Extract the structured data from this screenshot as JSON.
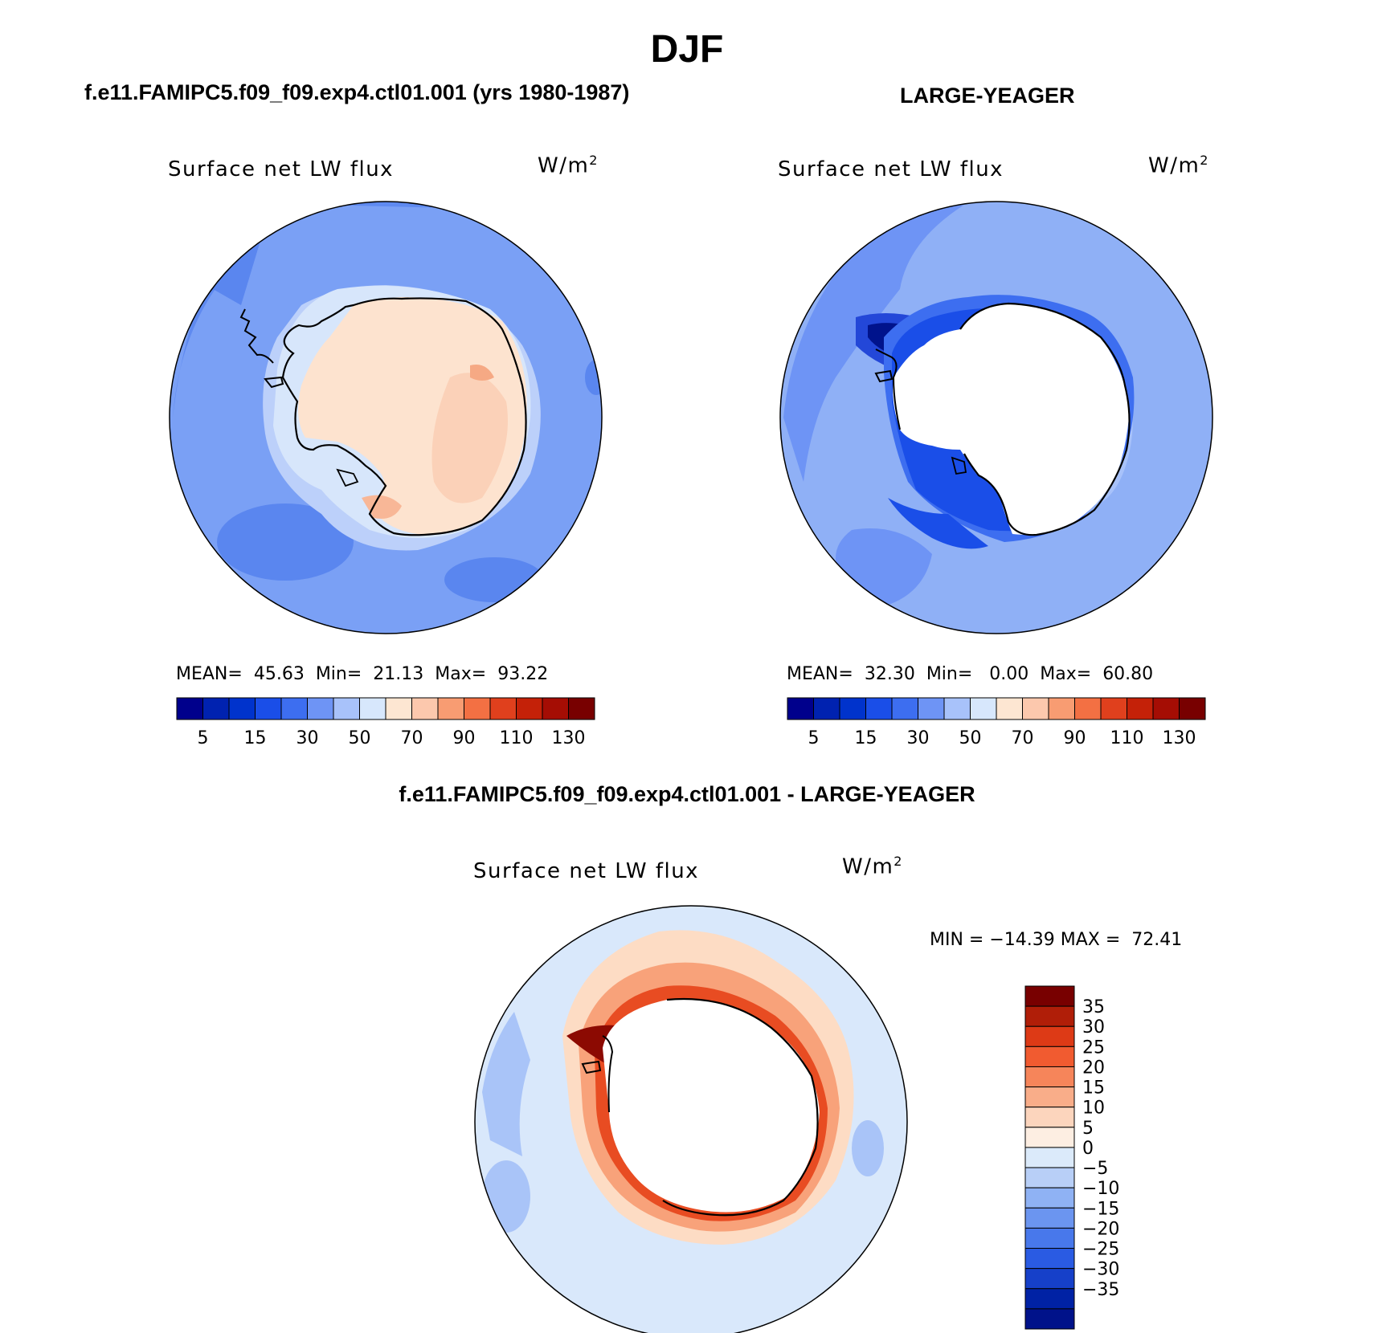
{
  "figure": {
    "title": "DJF"
  },
  "panels": {
    "model": {
      "case_title": "f.e11.FAMIPC5.f09_f09.exp4.ctl01.001 (yrs 1980-1987)",
      "variable": "Surface net LW flux",
      "units_text": "W/m",
      "units_sup": "2",
      "stats": {
        "mean_label": "MEAN=",
        "mean": "45.63",
        "min_label": "Min=",
        "min": "21.13",
        "max_label": "Max=",
        "max": "93.22"
      }
    },
    "obs": {
      "case_title": "LARGE-YEAGER",
      "variable": "Surface net LW flux",
      "units_text": "W/m",
      "units_sup": "2",
      "stats": {
        "mean_label": "MEAN=",
        "mean": "32.30",
        "min_label": "Min=",
        "min": "0.00",
        "max_label": "Max=",
        "max": "60.80"
      }
    },
    "diff": {
      "case_title": "f.e11.FAMIPC5.f09_f09.exp4.ctl01.001 - LARGE-YEAGER",
      "variable": "Surface net LW flux",
      "units_text": "W/m",
      "units_sup": "2",
      "min_max_text": "MIN = −14.39 MAX =  72.41"
    }
  },
  "colorbars": {
    "absolute": {
      "orientation": "horizontal",
      "colors": [
        "#00008c",
        "#0022b0",
        "#0033cc",
        "#1a4ee8",
        "#3d6ef0",
        "#6e94f5",
        "#a8c2fa",
        "#d7e7fc",
        "#fde6d2",
        "#fcc8ad",
        "#f89c72",
        "#f37043",
        "#e0401d",
        "#c42108",
        "#a50d04",
        "#780000"
      ],
      "tick_labels": [
        "5",
        "15",
        "30",
        "50",
        "70",
        "90",
        "110",
        "130"
      ]
    },
    "difference": {
      "orientation": "vertical",
      "colors": [
        "#780000",
        "#b01e08",
        "#dd3a16",
        "#f15b30",
        "#f6855a",
        "#f9ad89",
        "#fcd5bd",
        "#fdeee2",
        "#dbeafa",
        "#b8cff7",
        "#8fb2f4",
        "#6b95f0",
        "#4878eb",
        "#2a5be3",
        "#1640c9",
        "#0022a5",
        "#00128a"
      ],
      "tick_labels": [
        "35",
        "30",
        "25",
        "20",
        "15",
        "10",
        "5",
        "0",
        "−5",
        "−10",
        "−15",
        "−20",
        "−25",
        "−30",
        "−35"
      ]
    }
  },
  "map_colors": {
    "coastline": "#000000",
    "model_ocean": "#7aa0f5",
    "model_outer": "#5a86ef",
    "model_inner_ring": "#bcd0fa",
    "model_ice": "#fde3cf",
    "model_ice_warm": "#fbc4a6",
    "obs_ocean": "#8fb0f6",
    "obs_dark": "#2347d8",
    "obs_darkest": "#00138c",
    "obs_land": "#ffffff",
    "diff_ocean": "#d9e8fb",
    "diff_peach": "#fddcc4",
    "diff_red": "#e84c22",
    "diff_darkred": "#8c0a02",
    "diff_blue": "#a9c4f8"
  }
}
